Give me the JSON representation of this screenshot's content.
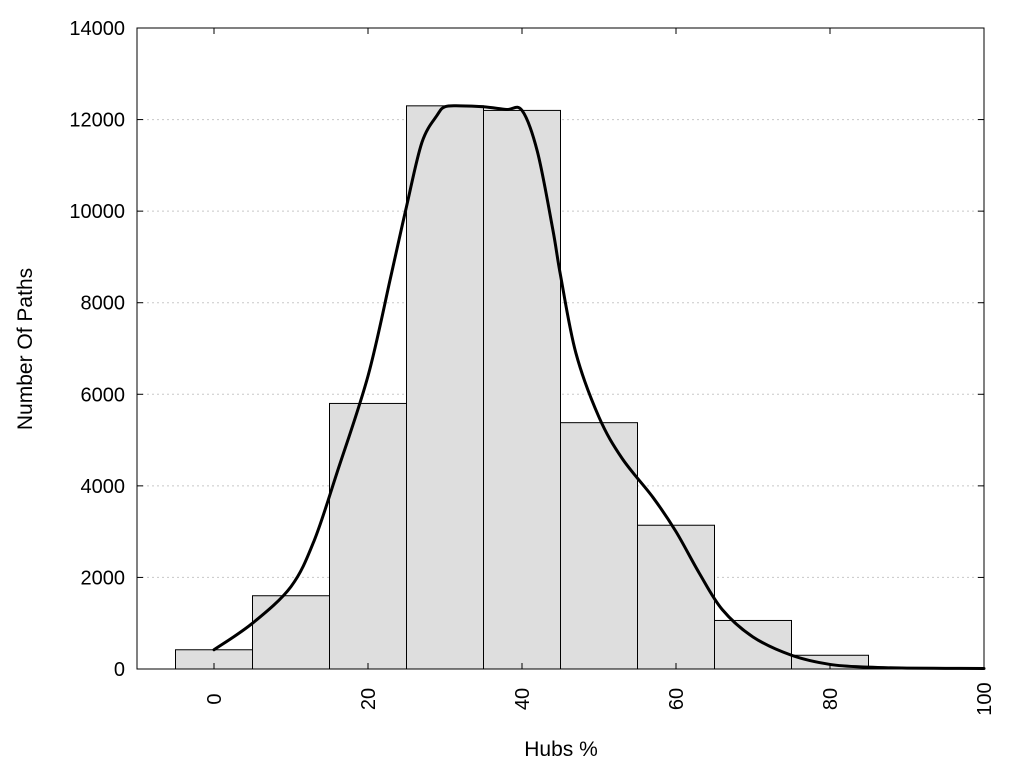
{
  "chart_data": {
    "type": "bar",
    "xlabel": "Hubs %",
    "ylabel": "Number Of Paths",
    "xlim": [
      -10,
      100
    ],
    "ylim": [
      0,
      14000
    ],
    "x_ticks": [
      0,
      20,
      40,
      60,
      80,
      100
    ],
    "y_ticks": [
      0,
      2000,
      4000,
      6000,
      8000,
      10000,
      12000,
      14000
    ],
    "grid": "horizontal dotted",
    "bins": [
      {
        "center": 0,
        "value": 420
      },
      {
        "center": 10,
        "value": 1600
      },
      {
        "center": 20,
        "value": 5800
      },
      {
        "center": 30,
        "value": 12300
      },
      {
        "center": 40,
        "value": 12200
      },
      {
        "center": 50,
        "value": 5380
      },
      {
        "center": 60,
        "value": 3140
      },
      {
        "center": 70,
        "value": 1060
      },
      {
        "center": 80,
        "value": 300
      },
      {
        "center": 90,
        "value": 20
      }
    ],
    "bin_width": 10,
    "curve": {
      "x": [
        0,
        5,
        10,
        13,
        16,
        20,
        23,
        25,
        27,
        29,
        30,
        32,
        35,
        38,
        40,
        42,
        44,
        45,
        47,
        50,
        53,
        57,
        60,
        63,
        66,
        70,
        75,
        80,
        85,
        90,
        95,
        100
      ],
      "y": [
        420,
        1000,
        1800,
        2800,
        4300,
        6400,
        8600,
        10100,
        11500,
        12100,
        12280,
        12300,
        12280,
        12220,
        12200,
        11300,
        9600,
        8600,
        6900,
        5500,
        4600,
        3750,
        3000,
        2100,
        1300,
        700,
        300,
        100,
        40,
        20,
        15,
        10
      ]
    },
    "bar_color": "#dedede",
    "curve_color": "#000000"
  }
}
